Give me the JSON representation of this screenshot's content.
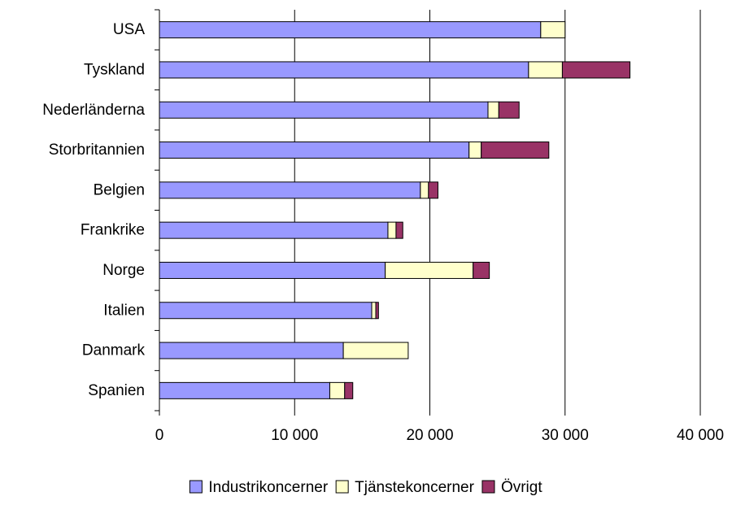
{
  "chart_data": {
    "type": "bar",
    "orientation": "horizontal",
    "stacked": true,
    "categories": [
      "USA",
      "Tyskland",
      "Nederländerna",
      "Storbritannien",
      "Belgien",
      "Frankrike",
      "Norge",
      "Italien",
      "Danmark",
      "Spanien"
    ],
    "series": [
      {
        "name": "Industrikoncerner",
        "color": "#9999FF",
        "values": [
          28200,
          27300,
          24300,
          22900,
          19300,
          16900,
          16700,
          15700,
          13600,
          12600
        ]
      },
      {
        "name": "Tjänstekoncerner",
        "color": "#FFFFCC",
        "values": [
          1800,
          2500,
          800,
          900,
          600,
          600,
          6500,
          300,
          4800,
          1100
        ]
      },
      {
        "name": "Övrigt",
        "color": "#993366",
        "values": [
          0,
          5000,
          1500,
          5000,
          700,
          500,
          1200,
          200,
          0,
          600
        ]
      }
    ],
    "xlim": [
      0,
      40000
    ],
    "xticks": [
      0,
      10000,
      20000,
      30000,
      40000
    ],
    "xtick_labels": [
      "0",
      "10 000",
      "20 000",
      "30 000",
      "40 000"
    ],
    "grid": "vertical",
    "legend_position": "bottom",
    "title": "",
    "xlabel": "",
    "ylabel": ""
  }
}
